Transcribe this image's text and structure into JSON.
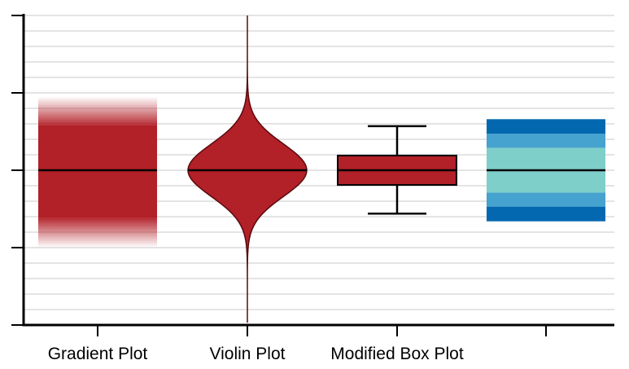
{
  "chart_data": {
    "type": "box",
    "categories": [
      "Gradient Plot",
      "Violin Plot",
      "Modified Box Plot",
      ""
    ],
    "ylim": [
      -2,
      2
    ],
    "grid": true,
    "y_ticks": [
      -2,
      -1,
      0,
      1,
      2
    ],
    "y_tick_labels_visible": false,
    "series": [
      {
        "kind": "gradient",
        "median": 0,
        "solid_range": [
          -0.62,
          0.58
        ],
        "fade_range": [
          -1.0,
          0.95
        ],
        "color": "#b22028"
      },
      {
        "kind": "violin",
        "median": 0,
        "range": [
          -1.97,
          2.0
        ],
        "peak_density": 1.0,
        "color": "#b22028"
      },
      {
        "kind": "box",
        "median": 0,
        "q1": -0.19,
        "q3": 0.19,
        "whisker_low": -0.56,
        "whisker_high": 0.57,
        "color": "#b22028"
      },
      {
        "kind": "bands",
        "median": 0,
        "bands": [
          {
            "from": 0.47,
            "to": 0.66,
            "color": "#0468b0"
          },
          {
            "from": 0.29,
            "to": 0.47,
            "color": "#46a2cf"
          },
          {
            "from": -0.29,
            "to": 0.29,
            "color": "#7ececa"
          },
          {
            "from": -0.47,
            "to": -0.29,
            "color": "#46a2cf"
          },
          {
            "from": -0.66,
            "to": -0.47,
            "color": "#0468b0"
          }
        ]
      }
    ]
  }
}
